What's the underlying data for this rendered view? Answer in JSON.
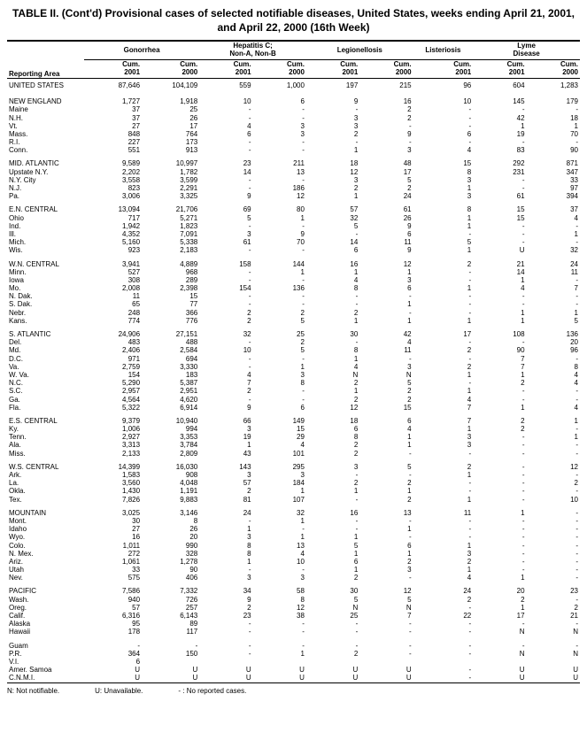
{
  "title": "TABLE II. (Cont'd) Provisional cases of selected notifiable diseases, United States, weeks ending April 21, 2001, and April 22, 2000 (16th Week)",
  "colgroups": [
    "Gonorrhea",
    "Hepatitis C; Non-A, Non-B",
    "Legionellosis",
    "Listeriosis",
    "Lyme Disease"
  ],
  "subhead": [
    "Reporting Area",
    "Cum. 2001",
    "Cum. 2000",
    "Cum. 2001",
    "Cum. 2000",
    "Cum. 2001",
    "Cum. 2000",
    "Cum. 2001",
    "Cum. 2001",
    "Cum. 2000"
  ],
  "sections": [
    {
      "rows": [
        [
          "UNITED STATES",
          "87,646",
          "104,109",
          "559",
          "1,000",
          "197",
          "215",
          "96",
          "604",
          "1,283"
        ]
      ]
    },
    {
      "rows": [
        [
          "NEW ENGLAND",
          "1,727",
          "1,918",
          "10",
          "6",
          "9",
          "16",
          "10",
          "145",
          "179"
        ],
        [
          "Maine",
          "37",
          "25",
          "-",
          "-",
          "-",
          "2",
          "-",
          "-",
          "-"
        ],
        [
          "N.H.",
          "37",
          "26",
          "-",
          "-",
          "3",
          "2",
          "-",
          "42",
          "18"
        ],
        [
          "Vt.",
          "27",
          "17",
          "4",
          "3",
          "3",
          "-",
          "-",
          "1",
          "1"
        ],
        [
          "Mass.",
          "848",
          "764",
          "6",
          "3",
          "2",
          "9",
          "6",
          "19",
          "70"
        ],
        [
          "R.I.",
          "227",
          "173",
          "-",
          "-",
          "-",
          "-",
          "-",
          "-",
          "-"
        ],
        [
          "Conn.",
          "551",
          "913",
          "-",
          "-",
          "1",
          "3",
          "4",
          "83",
          "90"
        ]
      ]
    },
    {
      "rows": [
        [
          "MID. ATLANTIC",
          "9,589",
          "10,997",
          "23",
          "211",
          "18",
          "48",
          "15",
          "292",
          "871"
        ],
        [
          "Upstate N.Y.",
          "2,202",
          "1,782",
          "14",
          "13",
          "12",
          "17",
          "8",
          "231",
          "347"
        ],
        [
          "N.Y. City",
          "3,558",
          "3,599",
          "-",
          "-",
          "3",
          "5",
          "3",
          "-",
          "33"
        ],
        [
          "N.J.",
          "823",
          "2,291",
          "-",
          "186",
          "2",
          "2",
          "1",
          "-",
          "97"
        ],
        [
          "Pa.",
          "3,006",
          "3,325",
          "9",
          "12",
          "1",
          "24",
          "3",
          "61",
          "394"
        ]
      ]
    },
    {
      "rows": [
        [
          "E.N. CENTRAL",
          "13,094",
          "21,706",
          "69",
          "80",
          "57",
          "61",
          "8",
          "15",
          "37"
        ],
        [
          "Ohio",
          "717",
          "5,271",
          "5",
          "1",
          "32",
          "26",
          "1",
          "15",
          "4"
        ],
        [
          "Ind.",
          "1,942",
          "1,823",
          "-",
          "-",
          "5",
          "9",
          "1",
          "-",
          "-"
        ],
        [
          "Ill.",
          "4,352",
          "7,091",
          "3",
          "9",
          "-",
          "6",
          "-",
          "-",
          "1"
        ],
        [
          "Mich.",
          "5,160",
          "5,338",
          "61",
          "70",
          "14",
          "11",
          "5",
          "-",
          "-"
        ],
        [
          "Wis.",
          "923",
          "2,183",
          "-",
          "-",
          "6",
          "9",
          "1",
          "U",
          "32"
        ]
      ]
    },
    {
      "rows": [
        [
          "W.N. CENTRAL",
          "3,941",
          "4,889",
          "158",
          "144",
          "16",
          "12",
          "2",
          "21",
          "24"
        ],
        [
          "Minn.",
          "527",
          "968",
          "-",
          "1",
          "1",
          "1",
          "-",
          "14",
          "11"
        ],
        [
          "Iowa",
          "308",
          "289",
          "-",
          "-",
          "4",
          "3",
          "-",
          "1",
          "-"
        ],
        [
          "Mo.",
          "2,008",
          "2,398",
          "154",
          "136",
          "8",
          "6",
          "1",
          "4",
          "7"
        ],
        [
          "N. Dak.",
          "11",
          "15",
          "-",
          "-",
          "-",
          "-",
          "-",
          "-",
          "-"
        ],
        [
          "S. Dak.",
          "65",
          "77",
          "-",
          "-",
          "-",
          "1",
          "-",
          "-",
          "-"
        ],
        [
          "Nebr.",
          "248",
          "366",
          "2",
          "2",
          "2",
          "-",
          "-",
          "1",
          "1"
        ],
        [
          "Kans.",
          "774",
          "776",
          "2",
          "5",
          "1",
          "1",
          "1",
          "1",
          "5"
        ]
      ]
    },
    {
      "rows": [
        [
          "S. ATLANTIC",
          "24,906",
          "27,151",
          "32",
          "25",
          "30",
          "42",
          "17",
          "108",
          "136"
        ],
        [
          "Del.",
          "483",
          "488",
          "-",
          "2",
          "-",
          "4",
          "-",
          "-",
          "20"
        ],
        [
          "Md.",
          "2,406",
          "2,584",
          "10",
          "5",
          "8",
          "11",
          "2",
          "90",
          "96"
        ],
        [
          "D.C.",
          "971",
          "694",
          "-",
          "-",
          "1",
          "-",
          "-",
          "7",
          "-"
        ],
        [
          "Va.",
          "2,759",
          "3,330",
          "-",
          "1",
          "4",
          "3",
          "2",
          "7",
          "8"
        ],
        [
          "W. Va.",
          "154",
          "183",
          "4",
          "3",
          "N",
          "N",
          "1",
          "1",
          "4"
        ],
        [
          "N.C.",
          "5,290",
          "5,387",
          "7",
          "8",
          "2",
          "5",
          "-",
          "2",
          "4"
        ],
        [
          "S.C.",
          "2,957",
          "2,951",
          "2",
          "-",
          "1",
          "2",
          "1",
          "-",
          "-"
        ],
        [
          "Ga.",
          "4,564",
          "4,620",
          "-",
          "-",
          "2",
          "2",
          "4",
          "-",
          "-"
        ],
        [
          "Fla.",
          "5,322",
          "6,914",
          "9",
          "6",
          "12",
          "15",
          "7",
          "1",
          "4"
        ]
      ]
    },
    {
      "rows": [
        [
          "E.S. CENTRAL",
          "9,379",
          "10,940",
          "66",
          "149",
          "18",
          "6",
          "7",
          "2",
          "1"
        ],
        [
          "Ky.",
          "1,006",
          "994",
          "3",
          "15",
          "6",
          "4",
          "1",
          "2",
          "-"
        ],
        [
          "Tenn.",
          "2,927",
          "3,353",
          "19",
          "29",
          "8",
          "1",
          "3",
          "-",
          "1"
        ],
        [
          "Ala.",
          "3,313",
          "3,784",
          "1",
          "4",
          "2",
          "1",
          "3",
          "-",
          "-"
        ],
        [
          "Miss.",
          "2,133",
          "2,809",
          "43",
          "101",
          "2",
          "-",
          "-",
          "-",
          "-"
        ]
      ]
    },
    {
      "rows": [
        [
          "W.S. CENTRAL",
          "14,399",
          "16,030",
          "143",
          "295",
          "3",
          "5",
          "2",
          "-",
          "12"
        ],
        [
          "Ark.",
          "1,583",
          "908",
          "3",
          "3",
          "-",
          "-",
          "1",
          "-",
          "-"
        ],
        [
          "La.",
          "3,560",
          "4,048",
          "57",
          "184",
          "2",
          "2",
          "-",
          "-",
          "2"
        ],
        [
          "Okla.",
          "1,430",
          "1,191",
          "2",
          "1",
          "1",
          "1",
          "-",
          "-",
          "-"
        ],
        [
          "Tex.",
          "7,826",
          "9,883",
          "81",
          "107",
          "-",
          "2",
          "1",
          "-",
          "10"
        ]
      ]
    },
    {
      "rows": [
        [
          "MOUNTAIN",
          "3,025",
          "3,146",
          "24",
          "32",
          "16",
          "13",
          "11",
          "1",
          "-"
        ],
        [
          "Mont.",
          "30",
          "8",
          "-",
          "1",
          "-",
          "-",
          "-",
          "-",
          "-"
        ],
        [
          "Idaho",
          "27",
          "26",
          "1",
          "-",
          "-",
          "1",
          "-",
          "-",
          "-"
        ],
        [
          "Wyo.",
          "16",
          "20",
          "3",
          "1",
          "1",
          "-",
          "-",
          "-",
          "-"
        ],
        [
          "Colo.",
          "1,011",
          "990",
          "8",
          "13",
          "5",
          "6",
          "1",
          "-",
          "-"
        ],
        [
          "N. Mex.",
          "272",
          "328",
          "8",
          "4",
          "1",
          "1",
          "3",
          "-",
          "-"
        ],
        [
          "Ariz.",
          "1,061",
          "1,278",
          "1",
          "10",
          "6",
          "2",
          "2",
          "-",
          "-"
        ],
        [
          "Utah",
          "33",
          "90",
          "-",
          "-",
          "1",
          "3",
          "1",
          "-",
          "-"
        ],
        [
          "Nev.",
          "575",
          "406",
          "3",
          "3",
          "2",
          "-",
          "4",
          "1",
          "-"
        ]
      ]
    },
    {
      "rows": [
        [
          "PACIFIC",
          "7,586",
          "7,332",
          "34",
          "58",
          "30",
          "12",
          "24",
          "20",
          "23"
        ],
        [
          "Wash.",
          "940",
          "726",
          "9",
          "8",
          "5",
          "5",
          "2",
          "2",
          "-"
        ],
        [
          "Oreg.",
          "57",
          "257",
          "2",
          "12",
          "N",
          "N",
          "-",
          "1",
          "2"
        ],
        [
          "Calif.",
          "6,316",
          "6,143",
          "23",
          "38",
          "25",
          "7",
          "22",
          "17",
          "21"
        ],
        [
          "Alaska",
          "95",
          "89",
          "-",
          "-",
          "-",
          "-",
          "-",
          "-",
          "-"
        ],
        [
          "Hawaii",
          "178",
          "117",
          "-",
          "-",
          "-",
          "-",
          "-",
          "N",
          "N"
        ]
      ]
    },
    {
      "rows": [
        [
          "Guam",
          "-",
          "-",
          "-",
          "-",
          "-",
          "-",
          "-",
          "-",
          "-"
        ],
        [
          "P.R.",
          "364",
          "150",
          "-",
          "1",
          "2",
          "-",
          "-",
          "N",
          "N"
        ],
        [
          "V.I.",
          "6",
          "",
          "",
          "",
          "",
          "",
          "",
          "",
          ""
        ],
        [
          "Amer. Samoa",
          "U",
          "U",
          "U",
          "U",
          "U",
          "U",
          "-",
          "U",
          "U"
        ],
        [
          "C.N.M.I.",
          "U",
          "U",
          "U",
          "U",
          "U",
          "U",
          "-",
          "U",
          "U"
        ]
      ]
    }
  ],
  "footnotes": [
    "N: Not notifiable.",
    "U: Unavailable.",
    "- : No reported cases."
  ]
}
